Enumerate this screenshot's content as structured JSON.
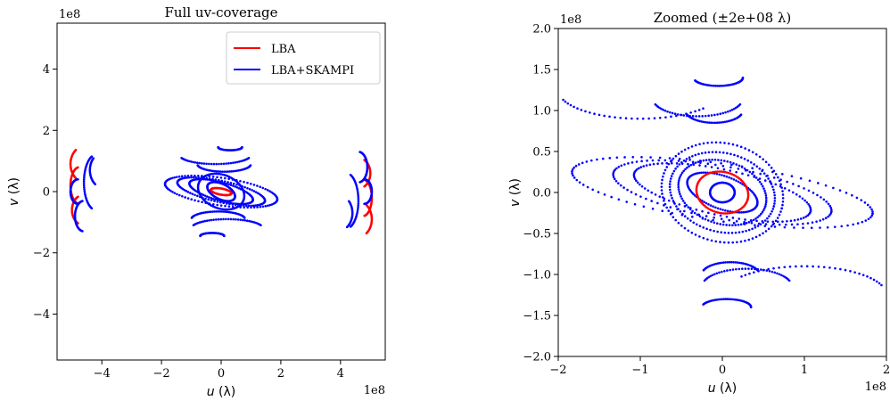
{
  "chart_data": [
    {
      "type": "scatter",
      "title": "Full uv-coverage",
      "xlabel": "u (λ)",
      "ylabel": "v (λ)",
      "x_offset_text": "1e8",
      "y_offset_text": "1e8",
      "xlim": [
        -5.5,
        5.5
      ],
      "ylim": [
        -5.5,
        5.5
      ],
      "xticks": [
        -4,
        -2,
        0,
        2,
        4
      ],
      "xtick_labels": [
        "−4",
        "−2",
        "0",
        "2",
        "4"
      ],
      "yticks": [
        -4,
        -2,
        0,
        2,
        4
      ],
      "ytick_labels": [
        "−4",
        "−2",
        "0",
        "2",
        "4"
      ],
      "grid": false,
      "legend": {
        "position": "top-right",
        "entries": [
          {
            "label": "LBA",
            "color": "#ff0000"
          },
          {
            "label": "LBA+SKAMPI",
            "color": "#0000ff"
          }
        ]
      },
      "series": [
        {
          "name": "LBA",
          "color": "#ff0000",
          "tracks": [
            {
              "cx": 0,
              "cy": 0,
              "rx": 0.35,
              "ry": 0.1,
              "tilt": -10,
              "start": 0,
              "end": 360
            },
            {
              "cx": -4.75,
              "cy": 0.2,
              "rx": 0.3,
              "ry": 0.6,
              "tilt": 0,
              "start": 100,
              "end": 260
            },
            {
              "cx": -4.6,
              "cy": -0.6,
              "rx": 0.4,
              "ry": 0.5,
              "tilt": 0,
              "start": 120,
              "end": 240
            },
            {
              "cx": -4.55,
              "cy": 0.9,
              "rx": 0.5,
              "ry": 0.6,
              "tilt": 0,
              "start": 130,
              "end": 230
            },
            {
              "cx": 4.75,
              "cy": -0.2,
              "rx": 0.3,
              "ry": 0.6,
              "tilt": 0,
              "start": -80,
              "end": 80
            },
            {
              "cx": 4.6,
              "cy": 0.6,
              "rx": 0.4,
              "ry": 0.5,
              "tilt": 0,
              "start": -60,
              "end": 60
            },
            {
              "cx": 4.55,
              "cy": -0.9,
              "rx": 0.5,
              "ry": 0.6,
              "tilt": 0,
              "start": -50,
              "end": 50
            }
          ]
        },
        {
          "name": "LBA+SKAMPI",
          "color": "#0000ff",
          "tracks": [
            {
              "cx": 0,
              "cy": 0,
              "rx": 1.9,
              "ry": 0.45,
              "tilt": -8,
              "start": 0,
              "end": 360
            },
            {
              "cx": 0,
              "cy": 0,
              "rx": 1.5,
              "ry": 0.35,
              "tilt": -12,
              "start": 0,
              "end": 360
            },
            {
              "cx": 0,
              "cy": 0,
              "rx": 1.1,
              "ry": 0.3,
              "tilt": -15,
              "start": 0,
              "end": 360
            },
            {
              "cx": 0,
              "cy": 0,
              "rx": 0.8,
              "ry": 0.55,
              "tilt": -20,
              "start": 0,
              "end": 360
            },
            {
              "cx": 0,
              "cy": 0,
              "rx": 0.5,
              "ry": 0.25,
              "tilt": -25,
              "start": 0,
              "end": 360
            },
            {
              "cx": -0.2,
              "cy": 1.2,
              "rx": 1.2,
              "ry": 0.3,
              "tilt": 0,
              "start": 200,
              "end": 340
            },
            {
              "cx": 0.1,
              "cy": 0.9,
              "rx": 0.9,
              "ry": 0.25,
              "tilt": 0,
              "start": 190,
              "end": 350
            },
            {
              "cx": 0.2,
              "cy": -1.2,
              "rx": 1.2,
              "ry": 0.3,
              "tilt": 0,
              "start": 20,
              "end": 160
            },
            {
              "cx": -0.1,
              "cy": -0.9,
              "rx": 0.9,
              "ry": 0.25,
              "tilt": 0,
              "start": 10,
              "end": 170
            },
            {
              "cx": 0.3,
              "cy": 1.45,
              "rx": 0.4,
              "ry": 0.1,
              "tilt": 0,
              "start": 180,
              "end": 360
            },
            {
              "cx": -0.3,
              "cy": -1.45,
              "rx": 0.4,
              "ry": 0.1,
              "tilt": 0,
              "start": 0,
              "end": 180
            },
            {
              "cx": -4.8,
              "cy": 0.0,
              "rx": 0.25,
              "ry": 0.4,
              "tilt": 0,
              "start": 90,
              "end": 270
            },
            {
              "cx": -4.2,
              "cy": 0.3,
              "rx": 0.4,
              "ry": 0.9,
              "tilt": 0,
              "start": 110,
              "end": 250
            },
            {
              "cx": -4.6,
              "cy": -0.8,
              "rx": 0.3,
              "ry": 0.5,
              "tilt": 0,
              "start": 100,
              "end": 260
            },
            {
              "cx": -3.9,
              "cy": 0.7,
              "rx": 0.5,
              "ry": 0.6,
              "tilt": 0,
              "start": 140,
              "end": 230
            },
            {
              "cx": 4.8,
              "cy": 0.0,
              "rx": 0.25,
              "ry": 0.4,
              "tilt": 0,
              "start": -90,
              "end": 90
            },
            {
              "cx": 4.2,
              "cy": -0.3,
              "rx": 0.4,
              "ry": 0.9,
              "tilt": 0,
              "start": -70,
              "end": 70
            },
            {
              "cx": 4.6,
              "cy": 0.8,
              "rx": 0.3,
              "ry": 0.5,
              "tilt": 0,
              "start": -80,
              "end": 80
            },
            {
              "cx": 3.9,
              "cy": -0.7,
              "rx": 0.5,
              "ry": 0.6,
              "tilt": 0,
              "start": -50,
              "end": 40
            }
          ]
        }
      ]
    },
    {
      "type": "scatter",
      "title": "Zoomed (±2e+08 λ)",
      "xlabel": "u (λ)",
      "ylabel": "v (λ)",
      "x_offset_text": "1e8",
      "y_offset_text": "1e8",
      "xlim": [
        -2.0,
        2.0
      ],
      "ylim": [
        -2.0,
        2.0
      ],
      "xticks": [
        -2,
        -1,
        0,
        1,
        2
      ],
      "xtick_labels": [
        "−2",
        "−1",
        "0",
        "1",
        "2"
      ],
      "yticks": [
        -2.0,
        -1.5,
        -1.0,
        -0.5,
        0.0,
        0.5,
        1.0,
        1.5,
        2.0
      ],
      "ytick_labels": [
        "−2.0",
        "−1.5",
        "−1.0",
        "−0.5",
        "0.0",
        "0.5",
        "1.0",
        "1.5",
        "2.0"
      ],
      "grid": false,
      "series": [
        {
          "name": "LBA",
          "color": "#ff0000",
          "tracks": [
            {
              "cx": 0,
              "cy": 0,
              "rx": 0.32,
              "ry": 0.25,
              "tilt": -15,
              "start": 0,
              "end": 360
            }
          ]
        },
        {
          "name": "LBA+SKAMPI",
          "color": "#0000ff",
          "tracks": [
            {
              "cx": 0,
              "cy": 0,
              "rx": 1.85,
              "ry": 0.35,
              "tilt": -8,
              "start": 0,
              "end": 360
            },
            {
              "cx": 0,
              "cy": 0,
              "rx": 1.35,
              "ry": 0.32,
              "tilt": -10,
              "start": 0,
              "end": 360
            },
            {
              "cx": 0,
              "cy": 0,
              "rx": 1.1,
              "ry": 0.28,
              "tilt": -12,
              "start": 0,
              "end": 360
            },
            {
              "cx": 0,
              "cy": 0,
              "rx": 0.75,
              "ry": 0.6,
              "tilt": -15,
              "start": 0,
              "end": 360
            },
            {
              "cx": 0,
              "cy": 0,
              "rx": 0.65,
              "ry": 0.48,
              "tilt": -15,
              "start": 0,
              "end": 360
            },
            {
              "cx": 0,
              "cy": 0,
              "rx": 0.55,
              "ry": 0.38,
              "tilt": -18,
              "start": 0,
              "end": 360
            },
            {
              "cx": 0,
              "cy": 0,
              "rx": 0.45,
              "ry": 0.2,
              "tilt": -20,
              "start": 0,
              "end": 360
            },
            {
              "cx": 0,
              "cy": 0,
              "rx": 0.15,
              "ry": 0.12,
              "tilt": 0,
              "start": 0,
              "end": 360
            },
            {
              "cx": -0.3,
              "cy": 1.15,
              "rx": 0.55,
              "ry": 0.22,
              "tilt": 0,
              "start": 200,
              "end": 340
            },
            {
              "cx": -0.1,
              "cy": 1.0,
              "rx": 0.35,
              "ry": 0.15,
              "tilt": 0,
              "start": 200,
              "end": 340
            },
            {
              "cx": -0.05,
              "cy": 1.4,
              "rx": 0.3,
              "ry": 0.1,
              "tilt": 0,
              "start": 200,
              "end": 360
            },
            {
              "cx": 0.3,
              "cy": -1.15,
              "rx": 0.55,
              "ry": 0.22,
              "tilt": 0,
              "start": 20,
              "end": 160
            },
            {
              "cx": 0.1,
              "cy": -1.0,
              "rx": 0.35,
              "ry": 0.15,
              "tilt": 0,
              "start": 20,
              "end": 160
            },
            {
              "cx": 0.05,
              "cy": -1.4,
              "rx": 0.3,
              "ry": 0.1,
              "tilt": 0,
              "start": 0,
              "end": 160
            },
            {
              "cx": -1.0,
              "cy": 1.25,
              "rx": 1.0,
              "ry": 0.35,
              "tilt": 0,
              "start": 200,
              "end": 320
            },
            {
              "cx": 1.0,
              "cy": -1.25,
              "rx": 1.0,
              "ry": 0.35,
              "tilt": 0,
              "start": 20,
              "end": 140
            }
          ]
        }
      ]
    }
  ]
}
